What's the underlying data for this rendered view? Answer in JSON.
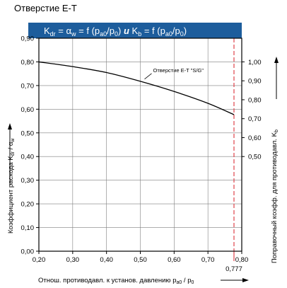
{
  "page": {
    "title": "Отверстие E-T"
  },
  "colors": {
    "band": "#1d5d9c",
    "grid": "#7f7f7f",
    "curve": "#000000",
    "marker": "#e0434b"
  },
  "chart_data": {
    "type": "line",
    "band_title": {
      "kdr_main": "K",
      "kdr_sub": "dr",
      "eq1": " = ",
      "alpha_main": "α",
      "alpha_sub": "w",
      "f1_open": " = f (p",
      "f1_sub": "a0",
      "f1_mid": "/p",
      "f1_sub2": "0",
      "f1_close": ")",
      "and_word": " и ",
      "kb_main": "K",
      "kb_sub": "b",
      "f2_open": " = f (p",
      "f2_sub": "a0",
      "f2_mid": "/p",
      "f2_sub2": "0",
      "f2_close": ")"
    },
    "x_axis": {
      "label_main": "Отнош. противодавл. к установ. давлению p",
      "label_sub1": "a0",
      "label_mid": " / p",
      "label_sub2": "0",
      "range": [
        0.2,
        0.8
      ],
      "ticks": [
        "0,20",
        "0,30",
        "0,40",
        "0,50",
        "0,60",
        "0,70",
        "0,80"
      ],
      "tick_values": [
        0.2,
        0.3,
        0.4,
        0.5,
        0.6,
        0.7,
        0.8
      ],
      "extra_tick": "0,777",
      "extra_tick_value": 0.777
    },
    "y_left": {
      "label_main": "Коэффициент расхода  K",
      "label_sub1": "dr",
      "label_mid": " / α",
      "label_sub2": "w",
      "range": [
        0,
        0.9
      ],
      "ticks": [
        "0,00",
        "0,10",
        "0,20",
        "0,30",
        "0,40",
        "0,50",
        "0,60",
        "0,70",
        "0,80",
        "0,90"
      ],
      "tick_values": [
        0,
        0.1,
        0.2,
        0.3,
        0.4,
        0.5,
        0.6,
        0.7,
        0.8,
        0.9
      ]
    },
    "y_right": {
      "label_main": "Поправочный коэфф. для противодавл.  K",
      "label_sub": "b",
      "range_min_at_left_zero": 0.0,
      "ticks": [
        "0,50",
        "0,60",
        "0,70",
        "0,80",
        "0,90",
        "1,00"
      ],
      "tick_values": [
        0.5,
        0.6,
        0.7,
        0.8,
        0.9,
        1.0
      ],
      "scale_left_per_right": 0.8
    },
    "series": [
      {
        "name": "Отверстие E-T \"S/G\"",
        "x": [
          0.2,
          0.3,
          0.4,
          0.5,
          0.6,
          0.7,
          0.777
        ],
        "y": [
          0.8,
          0.78,
          0.755,
          0.718,
          0.675,
          0.625,
          0.577
        ]
      }
    ],
    "grid": true
  }
}
